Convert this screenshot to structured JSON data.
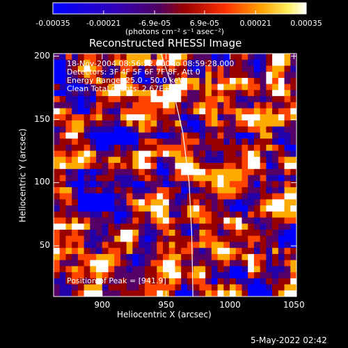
{
  "colorbar": {
    "ticks": [
      "-0.00035",
      "-0.00021",
      "-6.9e-05",
      "6.9e-05",
      "0.00021",
      "0.00035"
    ],
    "tick_values": [
      -0.00035,
      -0.00021,
      -6.9e-05,
      6.9e-05,
      0.00021,
      0.00035
    ],
    "range": [
      -0.00035,
      0.00035
    ],
    "units_label": "(photons cm⁻² s⁻¹ asec⁻²)",
    "colormap": [
      "#0000ff",
      "#2200aa",
      "#550066",
      "#990000",
      "#ff4400",
      "#ffaa00",
      "#ffffff"
    ]
  },
  "chart_data": {
    "type": "heatmap",
    "title": "Reconstructed RHESSI Image",
    "xlabel": "Heliocentric X (arcsec)",
    "ylabel": "Heliocentric Y (arcsec)",
    "xlim": [
      862,
      1052
    ],
    "ylim": [
      10,
      202
    ],
    "xticks": [
      900,
      950,
      1000,
      1050
    ],
    "yticks": [
      50,
      100,
      150,
      200
    ],
    "annotations": [
      "18-Nov-2004 08:56:52.000 to 08:59:28.000",
      "Detectors: 3F 4F 5F 6F 7F 8F, Att 0",
      "Energy Range: 25.0 - 50.0 keV",
      "Clean     Total counts: 2.67E+03",
      "Position of Peak = [941.9]"
    ],
    "limb_points": [
      [
        946,
        202
      ],
      [
        955,
        175
      ],
      [
        963,
        140
      ],
      [
        968,
        100
      ],
      [
        970,
        60
      ],
      [
        971,
        10
      ]
    ],
    "grid": false,
    "legend": "none"
  },
  "timestamp": "5-May-2022 02:42"
}
